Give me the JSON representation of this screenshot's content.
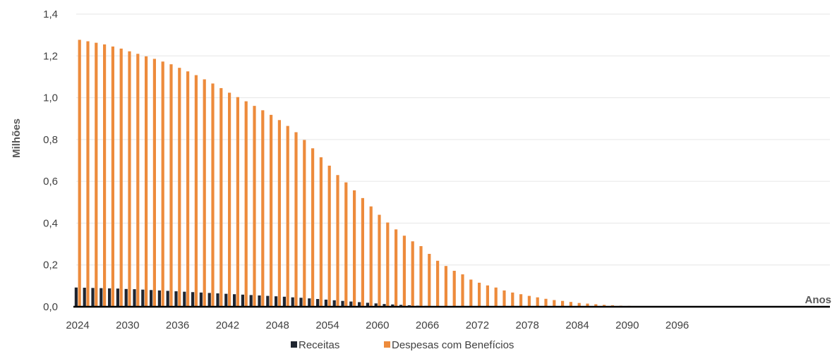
{
  "chart_data": {
    "type": "bar",
    "ylabel": "Milhões",
    "xlabel": "Anos",
    "ylim": [
      0,
      1.4
    ],
    "yticks": [
      "0,0",
      "0,2",
      "0,4",
      "0,6",
      "0,8",
      "1,0",
      "1,2",
      "1,4"
    ],
    "xtick_labels": [
      "2024",
      "2030",
      "2036",
      "2042",
      "2048",
      "2054",
      "2060",
      "2066",
      "2072",
      "2078",
      "2084",
      "2090",
      "2096"
    ],
    "grid": true,
    "legend_position": "bottom",
    "colors": {
      "Receitas": "#1f2530",
      "Despesas com Benefícios": "#ed8b3c"
    },
    "categories": [
      2024,
      2025,
      2026,
      2027,
      2028,
      2029,
      2030,
      2031,
      2032,
      2033,
      2034,
      2035,
      2036,
      2037,
      2038,
      2039,
      2040,
      2041,
      2042,
      2043,
      2044,
      2045,
      2046,
      2047,
      2048,
      2049,
      2050,
      2051,
      2052,
      2053,
      2054,
      2055,
      2056,
      2057,
      2058,
      2059,
      2060,
      2061,
      2062,
      2063,
      2064,
      2065,
      2066,
      2067,
      2068,
      2069,
      2070,
      2071,
      2072,
      2073,
      2074,
      2075,
      2076,
      2077,
      2078,
      2079,
      2080,
      2081,
      2082,
      2083,
      2084,
      2085,
      2086,
      2087,
      2088,
      2089,
      2090,
      2091,
      2092,
      2093,
      2094,
      2095,
      2096,
      2097,
      2098,
      2099
    ],
    "series": [
      {
        "name": "Receitas",
        "values": [
          0.092,
          0.091,
          0.09,
          0.089,
          0.088,
          0.087,
          0.085,
          0.084,
          0.082,
          0.08,
          0.078,
          0.076,
          0.074,
          0.072,
          0.07,
          0.068,
          0.066,
          0.064,
          0.062,
          0.06,
          0.058,
          0.056,
          0.054,
          0.052,
          0.05,
          0.048,
          0.045,
          0.043,
          0.04,
          0.037,
          0.034,
          0.031,
          0.028,
          0.025,
          0.022,
          0.019,
          0.016,
          0.013,
          0.011,
          0.009,
          0.007,
          0.005,
          0.004,
          0.003,
          0.002,
          0.002,
          0.001,
          0.001,
          0.001,
          0.001,
          0,
          0,
          0,
          0,
          0,
          0,
          0,
          0,
          0,
          0,
          0,
          0,
          0,
          0,
          0,
          0,
          0,
          0,
          0,
          0,
          0,
          0,
          0,
          0,
          0,
          0
        ]
      },
      {
        "name": "Despesas com Benefícios",
        "values": [
          1.277,
          1.27,
          1.263,
          1.255,
          1.245,
          1.235,
          1.222,
          1.21,
          1.198,
          1.186,
          1.173,
          1.16,
          1.143,
          1.126,
          1.108,
          1.088,
          1.068,
          1.046,
          1.024,
          1.003,
          0.983,
          0.961,
          0.94,
          0.918,
          0.893,
          0.865,
          0.835,
          0.798,
          0.758,
          0.715,
          0.675,
          0.63,
          0.595,
          0.557,
          0.52,
          0.48,
          0.44,
          0.403,
          0.37,
          0.34,
          0.313,
          0.29,
          0.253,
          0.22,
          0.195,
          0.172,
          0.155,
          0.13,
          0.115,
          0.102,
          0.092,
          0.078,
          0.068,
          0.06,
          0.052,
          0.045,
          0.038,
          0.032,
          0.028,
          0.023,
          0.018,
          0.015,
          0.012,
          0.009,
          0.007,
          0.005,
          0.004,
          0.003,
          0.002,
          0.002,
          0.001,
          0.001,
          0.001,
          0.001,
          0.001,
          0.001
        ]
      }
    ]
  }
}
